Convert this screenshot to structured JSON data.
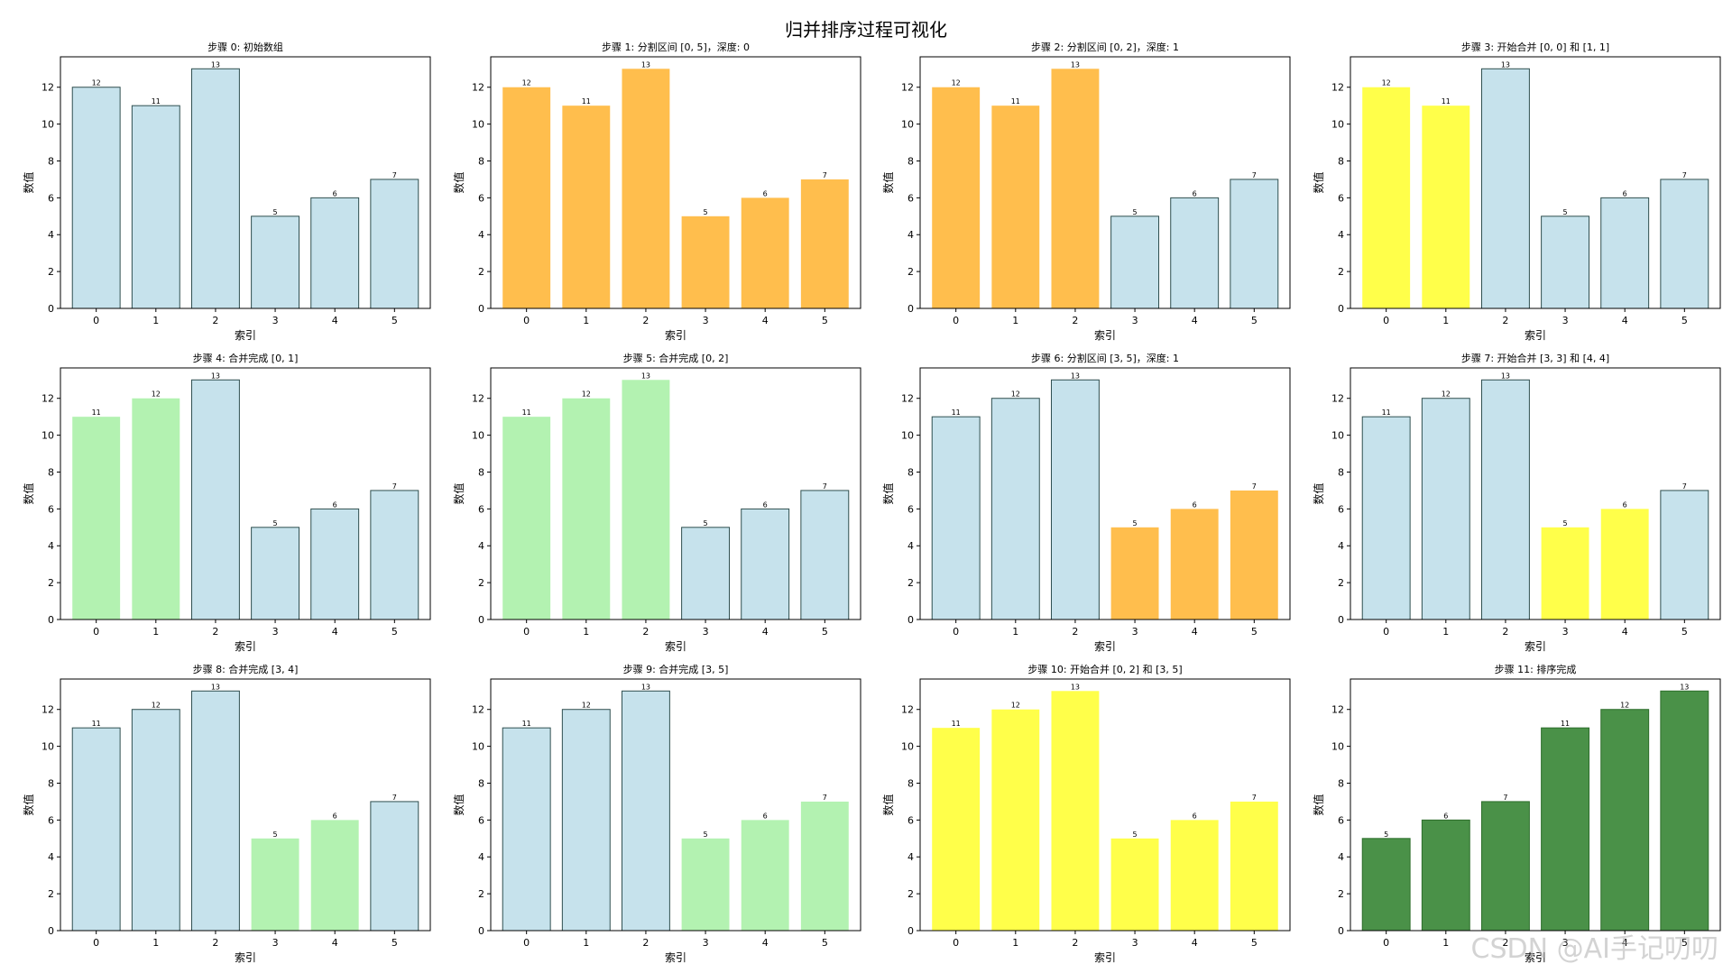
{
  "figure": {
    "title": "归并排序过程可视化",
    "watermark": "CSDN @AI手记叨叨"
  },
  "colors": {
    "default": "#c6e2ec",
    "split": "#ffbe4d",
    "merging": "#ffff4a",
    "merged": "#b3f2b1",
    "done": "#4a9148",
    "edge_dark": "#2f4f4f"
  },
  "chart_data": [
    {
      "type": "bar",
      "title": "步骤 0: 初始数组",
      "categories": [
        "0",
        "1",
        "2",
        "3",
        "4",
        "5"
      ],
      "values": [
        12,
        11,
        13,
        5,
        6,
        7
      ],
      "colors": [
        "default",
        "default",
        "default",
        "default",
        "default",
        "default"
      ],
      "xlabel": "索引",
      "ylabel": "数值",
      "ylim": [
        0,
        13.65
      ],
      "yticks": [
        0,
        2,
        4,
        6,
        8,
        10,
        12
      ]
    },
    {
      "type": "bar",
      "title": "步骤 1: 分割区间 [0, 5]，深度: 0",
      "categories": [
        "0",
        "1",
        "2",
        "3",
        "4",
        "5"
      ],
      "values": [
        12,
        11,
        13,
        5,
        6,
        7
      ],
      "colors": [
        "split",
        "split",
        "split",
        "split",
        "split",
        "split"
      ],
      "xlabel": "索引",
      "ylabel": "数值",
      "ylim": [
        0,
        13.65
      ],
      "yticks": [
        0,
        2,
        4,
        6,
        8,
        10,
        12
      ]
    },
    {
      "type": "bar",
      "title": "步骤 2: 分割区间 [0, 2]，深度: 1",
      "categories": [
        "0",
        "1",
        "2",
        "3",
        "4",
        "5"
      ],
      "values": [
        12,
        11,
        13,
        5,
        6,
        7
      ],
      "colors": [
        "split",
        "split",
        "split",
        "default",
        "default",
        "default"
      ],
      "xlabel": "索引",
      "ylabel": "数值",
      "ylim": [
        0,
        13.65
      ],
      "yticks": [
        0,
        2,
        4,
        6,
        8,
        10,
        12
      ]
    },
    {
      "type": "bar",
      "title": "步骤 3: 开始合并 [0, 0] 和 [1, 1]",
      "categories": [
        "0",
        "1",
        "2",
        "3",
        "4",
        "5"
      ],
      "values": [
        12,
        11,
        13,
        5,
        6,
        7
      ],
      "colors": [
        "merging",
        "merging",
        "default",
        "default",
        "default",
        "default"
      ],
      "xlabel": "索引",
      "ylabel": "数值",
      "ylim": [
        0,
        13.65
      ],
      "yticks": [
        0,
        2,
        4,
        6,
        8,
        10,
        12
      ]
    },
    {
      "type": "bar",
      "title": "步骤 4: 合并完成 [0, 1]",
      "categories": [
        "0",
        "1",
        "2",
        "3",
        "4",
        "5"
      ],
      "values": [
        11,
        12,
        13,
        5,
        6,
        7
      ],
      "colors": [
        "merged",
        "merged",
        "default",
        "default",
        "default",
        "default"
      ],
      "xlabel": "索引",
      "ylabel": "数值",
      "ylim": [
        0,
        13.65
      ],
      "yticks": [
        0,
        2,
        4,
        6,
        8,
        10,
        12
      ]
    },
    {
      "type": "bar",
      "title": "步骤 5: 合并完成 [0, 2]",
      "categories": [
        "0",
        "1",
        "2",
        "3",
        "4",
        "5"
      ],
      "values": [
        11,
        12,
        13,
        5,
        6,
        7
      ],
      "colors": [
        "merged",
        "merged",
        "merged",
        "default",
        "default",
        "default"
      ],
      "xlabel": "索引",
      "ylabel": "数值",
      "ylim": [
        0,
        13.65
      ],
      "yticks": [
        0,
        2,
        4,
        6,
        8,
        10,
        12
      ]
    },
    {
      "type": "bar",
      "title": "步骤 6: 分割区间 [3, 5]，深度: 1",
      "categories": [
        "0",
        "1",
        "2",
        "3",
        "4",
        "5"
      ],
      "values": [
        11,
        12,
        13,
        5,
        6,
        7
      ],
      "colors": [
        "default",
        "default",
        "default",
        "split",
        "split",
        "split"
      ],
      "xlabel": "索引",
      "ylabel": "数值",
      "ylim": [
        0,
        13.65
      ],
      "yticks": [
        0,
        2,
        4,
        6,
        8,
        10,
        12
      ]
    },
    {
      "type": "bar",
      "title": "步骤 7: 开始合并 [3, 3] 和 [4, 4]",
      "categories": [
        "0",
        "1",
        "2",
        "3",
        "4",
        "5"
      ],
      "values": [
        11,
        12,
        13,
        5,
        6,
        7
      ],
      "colors": [
        "default",
        "default",
        "default",
        "merging",
        "merging",
        "default"
      ],
      "xlabel": "索引",
      "ylabel": "数值",
      "ylim": [
        0,
        13.65
      ],
      "yticks": [
        0,
        2,
        4,
        6,
        8,
        10,
        12
      ]
    },
    {
      "type": "bar",
      "title": "步骤 8: 合并完成 [3, 4]",
      "categories": [
        "0",
        "1",
        "2",
        "3",
        "4",
        "5"
      ],
      "values": [
        11,
        12,
        13,
        5,
        6,
        7
      ],
      "colors": [
        "default",
        "default",
        "default",
        "merged",
        "merged",
        "default"
      ],
      "xlabel": "索引",
      "ylabel": "数值",
      "ylim": [
        0,
        13.65
      ],
      "yticks": [
        0,
        2,
        4,
        6,
        8,
        10,
        12
      ]
    },
    {
      "type": "bar",
      "title": "步骤 9: 合并完成 [3, 5]",
      "categories": [
        "0",
        "1",
        "2",
        "3",
        "4",
        "5"
      ],
      "values": [
        11,
        12,
        13,
        5,
        6,
        7
      ],
      "colors": [
        "default",
        "default",
        "default",
        "merged",
        "merged",
        "merged"
      ],
      "xlabel": "索引",
      "ylabel": "数值",
      "ylim": [
        0,
        13.65
      ],
      "yticks": [
        0,
        2,
        4,
        6,
        8,
        10,
        12
      ]
    },
    {
      "type": "bar",
      "title": "步骤 10: 开始合并 [0, 2] 和 [3, 5]",
      "categories": [
        "0",
        "1",
        "2",
        "3",
        "4",
        "5"
      ],
      "values": [
        11,
        12,
        13,
        5,
        6,
        7
      ],
      "colors": [
        "merging",
        "merging",
        "merging",
        "merging",
        "merging",
        "merging"
      ],
      "xlabel": "索引",
      "ylabel": "数值",
      "ylim": [
        0,
        13.65
      ],
      "yticks": [
        0,
        2,
        4,
        6,
        8,
        10,
        12
      ]
    },
    {
      "type": "bar",
      "title": "步骤 11: 排序完成",
      "categories": [
        "0",
        "1",
        "2",
        "3",
        "4",
        "5"
      ],
      "values": [
        5,
        6,
        7,
        11,
        12,
        13
      ],
      "colors": [
        "done",
        "done",
        "done",
        "done",
        "done",
        "done"
      ],
      "xlabel": "索引",
      "ylabel": "数值",
      "ylim": [
        0,
        13.65
      ],
      "yticks": [
        0,
        2,
        4,
        6,
        8,
        10,
        12
      ]
    }
  ]
}
